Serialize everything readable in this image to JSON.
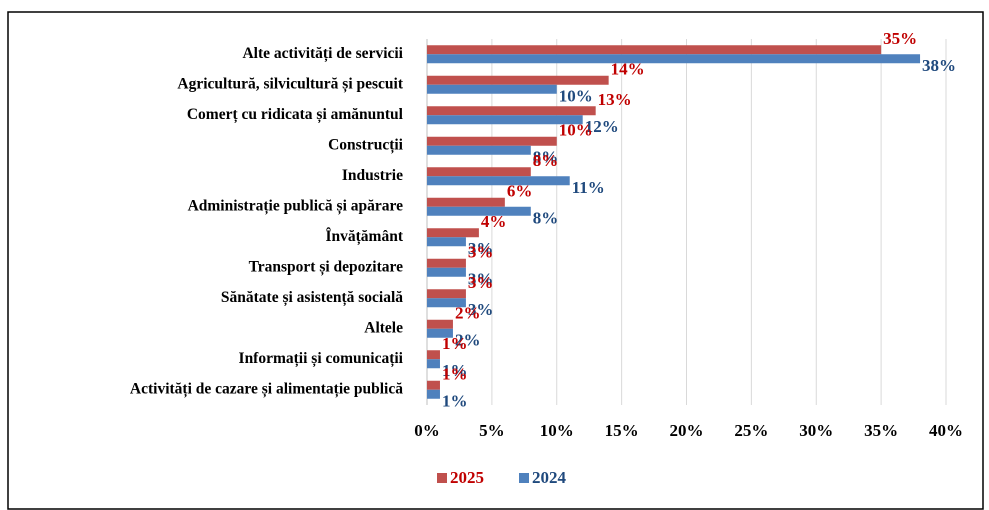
{
  "chart_data": {
    "type": "barh",
    "categories": [
      "Alte activități de servicii",
      "Agricultură, silvicultură și pescuit",
      "Comerț cu ridicata și amănuntul",
      "Construcții",
      "Industrie",
      "Administrație publică și apărare",
      "Învățământ",
      "Transport și depozitare",
      "Sănătate și asistență socială",
      "Altele",
      "Informații și comunicații",
      "Activități de cazare și alimentație publică"
    ],
    "series": [
      {
        "name": "2025",
        "color": "#c0504d",
        "label_color": "#c00000",
        "values": [
          35,
          14,
          13,
          10,
          8,
          6,
          4,
          3,
          3,
          2,
          1,
          1
        ],
        "value_labels": [
          "35%",
          "14%",
          "13%",
          "10%",
          "8%",
          "6%",
          "4%",
          "3%",
          "3%",
          "2%",
          "1%",
          "1%"
        ]
      },
      {
        "name": "2024",
        "color": "#4f81bd",
        "label_color": "#1f497d",
        "values": [
          38,
          10,
          12,
          8,
          11,
          8,
          3,
          3,
          3,
          2,
          1,
          1
        ],
        "value_labels": [
          "38%",
          "10%",
          "12%",
          "8%",
          "11%",
          "8%",
          "3%",
          "3%",
          "3%",
          "2%",
          "1%",
          "1%"
        ]
      }
    ],
    "xlim": [
      0,
      40
    ],
    "xticks": [
      {
        "value": 0,
        "label": "0%"
      },
      {
        "value": 5,
        "label": "5%"
      },
      {
        "value": 10,
        "label": "10%"
      },
      {
        "value": 15,
        "label": "15%"
      },
      {
        "value": 20,
        "label": "20%"
      },
      {
        "value": 25,
        "label": "25%"
      },
      {
        "value": 30,
        "label": "30%"
      },
      {
        "value": 35,
        "label": "35%"
      },
      {
        "value": 40,
        "label": "40%"
      }
    ],
    "grid": true,
    "legend": "bottom"
  }
}
